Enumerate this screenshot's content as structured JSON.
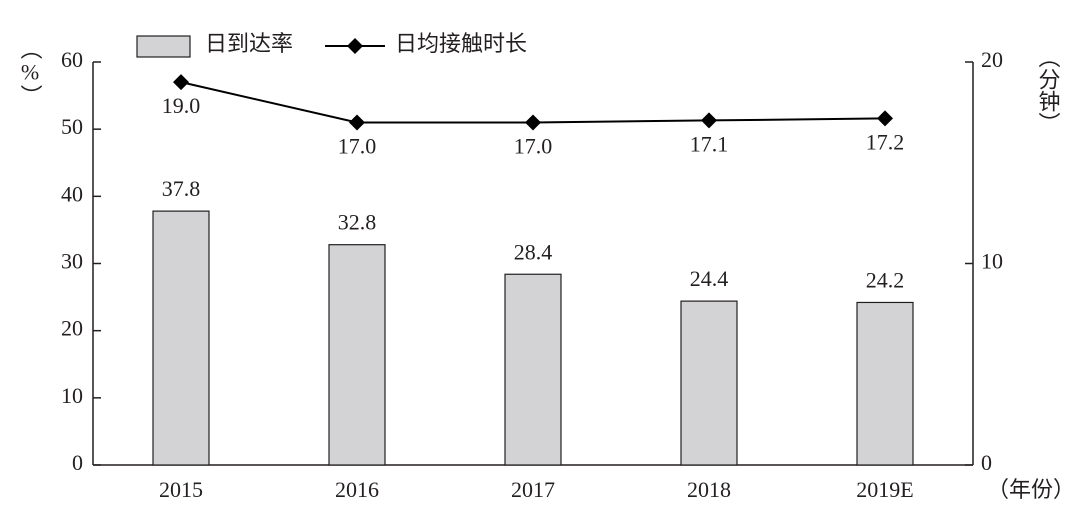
{
  "chart_data": {
    "type": "bar",
    "categories": [
      "2015",
      "2016",
      "2017",
      "2018",
      "2019E"
    ],
    "series": [
      {
        "name": "日到达率",
        "type": "bar",
        "color": "#d3d3d5",
        "values": [
          37.8,
          32.8,
          28.4,
          24.4,
          24.2
        ]
      },
      {
        "name": "日均接触时长",
        "type": "line",
        "axis": "y2",
        "color": "#000000",
        "values": [
          19.0,
          17.0,
          17.0,
          17.1,
          17.2
        ],
        "value_labels": [
          "19.0",
          "17.0",
          "17.0",
          "17.1",
          "17.2"
        ]
      }
    ],
    "y_label": "（%）",
    "y2_label": "（分钟）",
    "x_label": "（年份）",
    "ylim": [
      0,
      60
    ],
    "yticks": [
      0,
      10,
      20,
      30,
      40,
      50,
      60
    ],
    "y2lim": [
      0,
      20
    ],
    "y2ticks": [
      0,
      10,
      20
    ],
    "legend": "top-left",
    "grid": false
  }
}
